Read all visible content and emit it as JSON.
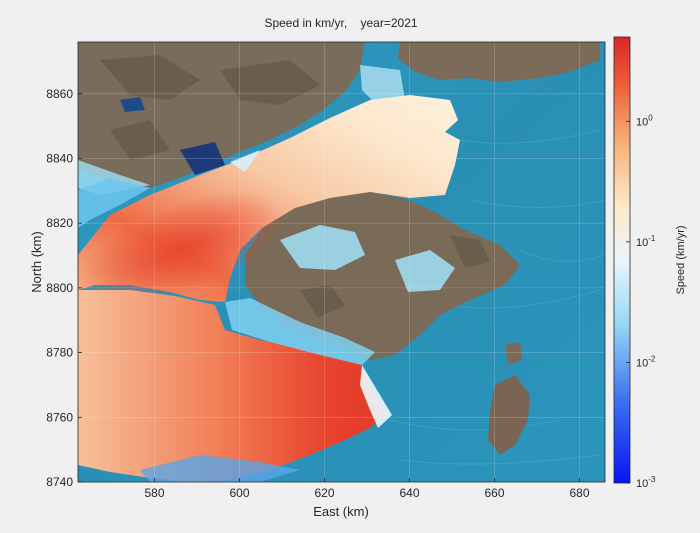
{
  "figure": {
    "title": "Speed in km/yr,    year=2021",
    "xlabel": "East (km)",
    "ylabel": "North (km)",
    "colorbar_label": "Speed (km/yr)"
  },
  "colors": {
    "figure_background": "#f0f0f0",
    "ocean_ice": "#2a93b8",
    "land": "#7a6a58",
    "speed_high": "#e53226",
    "speed_mid": "#fbe3c2",
    "speed_low": "#1424f0"
  },
  "chart_data": {
    "type": "heatmap",
    "title": "Speed in km/yr,    year=2021",
    "xlabel": "East (km)",
    "ylabel": "North (km)",
    "xlim": [
      562,
      686
    ],
    "ylim": [
      8740,
      8876
    ],
    "xticks": [
      580,
      600,
      620,
      640,
      660,
      680
    ],
    "yticks": [
      8740,
      8760,
      8780,
      8800,
      8820,
      8840,
      8860
    ],
    "grid": true,
    "colorbar": {
      "label": "Speed (km/yr)",
      "scale": "log",
      "range": [
        0.001,
        5
      ],
      "ticks": [
        {
          "value": 1,
          "mantissa": "10",
          "exponent": "0"
        },
        {
          "value": 0.1,
          "mantissa": "10",
          "exponent": "-1"
        },
        {
          "value": 0.01,
          "mantissa": "10",
          "exponent": "-2"
        },
        {
          "value": 0.001,
          "mantissa": "10",
          "exponent": "-3"
        }
      ]
    },
    "year": 2021
  }
}
